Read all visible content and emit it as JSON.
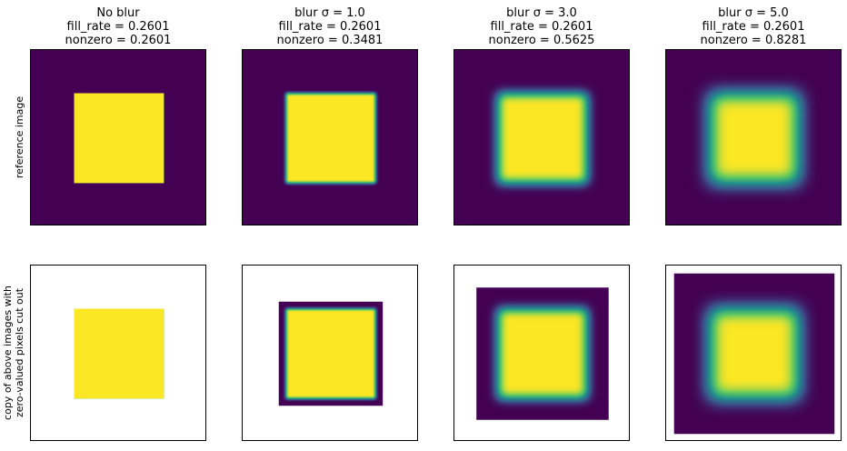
{
  "panels": [
    {
      "title": "No blur",
      "fill_rate": "fill_rate = 0.2601",
      "nonzero": "nonzero = 0.2601"
    },
    {
      "title": "blur σ = 1.0",
      "fill_rate": "fill_rate = 0.2601",
      "nonzero": "nonzero = 0.3481"
    },
    {
      "title": "blur σ = 3.0",
      "fill_rate": "fill_rate = 0.2601",
      "nonzero": "nonzero = 0.5625"
    },
    {
      "title": "blur σ = 5.0",
      "fill_rate": "fill_rate = 0.2601",
      "nonzero": "nonzero = 0.8281"
    }
  ],
  "row_labels": [
    [
      "reference image"
    ],
    [
      "copy of above images with",
      "zero-valued pixels cut out"
    ]
  ]
}
